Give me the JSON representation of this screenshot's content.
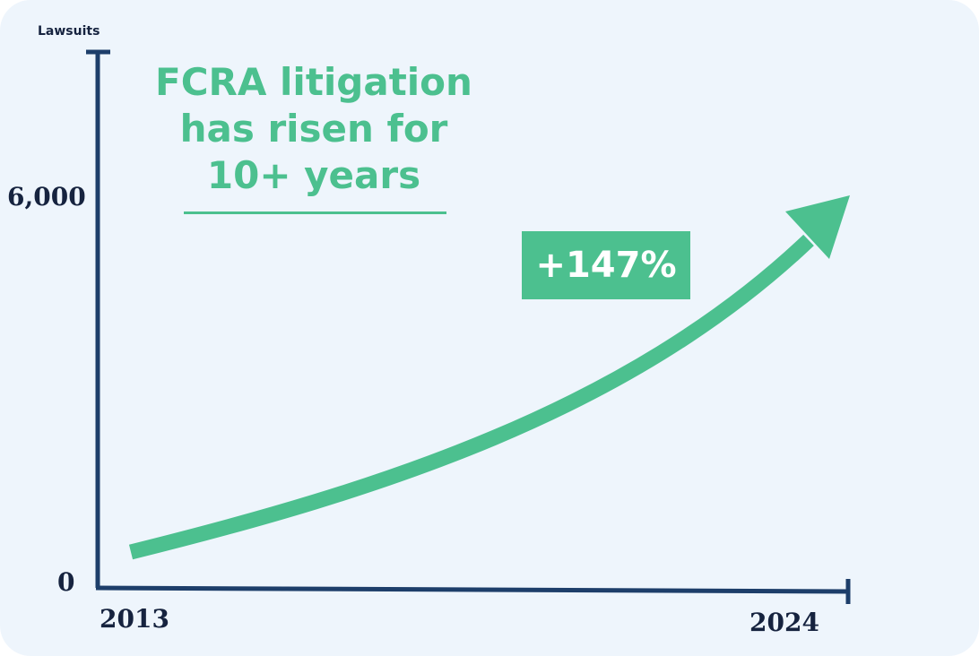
{
  "colors": {
    "accent": "#4cc08f",
    "axis": "#1d3e6a",
    "text": "#16233f",
    "background": "#eef5fc"
  },
  "chart_data": {
    "type": "line",
    "title": "FCRA litigation has risen for 10+ years",
    "headline_lines": [
      "FCRA litigation",
      "has risen for",
      "10+ years"
    ],
    "ylabel": "Lawsuits",
    "xlabel": "",
    "y_ticks": [
      "0",
      "6,000"
    ],
    "x_ticks": [
      "2013",
      "2024"
    ],
    "xlim": [
      2013,
      2024
    ],
    "ylim": [
      0,
      6000
    ],
    "annotation": "+147%",
    "trend": "rising (stylized arrow)",
    "legend": "none",
    "grid": false
  }
}
